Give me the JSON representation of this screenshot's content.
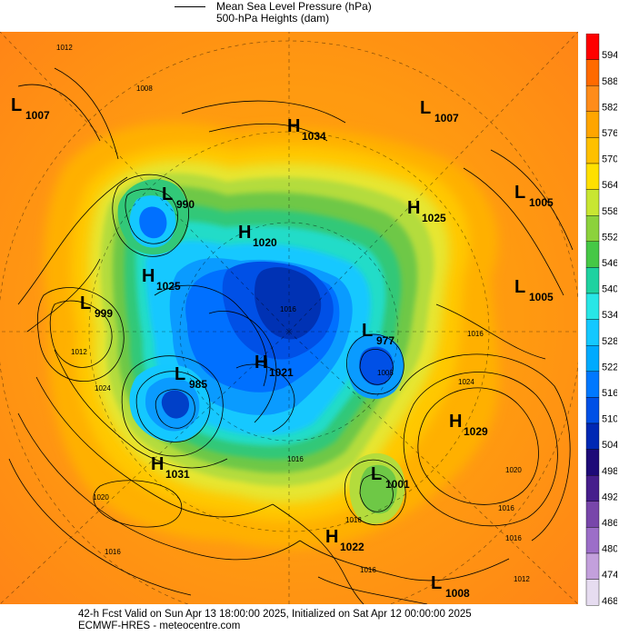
{
  "legend": {
    "line_label_1": "Mean Sea Level Pressure (hPa)",
    "line_label_2": "500-hPa Heights (dam)"
  },
  "colorbar": {
    "labels": [
      "594",
      "588",
      "582",
      "576",
      "570",
      "564",
      "558",
      "552",
      "546",
      "540",
      "534",
      "528",
      "522",
      "516",
      "510",
      "504",
      "498",
      "492",
      "486",
      "480",
      "474",
      "468"
    ],
    "colors": [
      "#ff0000",
      "#ff6a00",
      "#ff8c1a",
      "#ffa500",
      "#ffc000",
      "#ffe000",
      "#c8e632",
      "#8cd23c",
      "#46c846",
      "#1ed2a0",
      "#28e6e6",
      "#14c8ff",
      "#00aaff",
      "#0078ff",
      "#0050e6",
      "#0028b4",
      "#1e0a78",
      "#461e8c",
      "#7846aa",
      "#9c6ec8",
      "#c3a0dc",
      "#e6dcf0"
    ]
  },
  "systems": [
    {
      "type": "L",
      "value": "1007"
    },
    {
      "type": "H",
      "value": "1034"
    },
    {
      "type": "L",
      "value": "1007"
    },
    {
      "type": "L",
      "value": "990"
    },
    {
      "type": "L",
      "value": "1005"
    },
    {
      "type": "H",
      "value": "1025"
    },
    {
      "type": "H",
      "value": "1020"
    },
    {
      "type": "H",
      "value": "1025"
    },
    {
      "type": "L",
      "value": "999"
    },
    {
      "type": "L",
      "value": "1005"
    },
    {
      "type": "L",
      "value": "977"
    },
    {
      "type": "L",
      "value": "985"
    },
    {
      "type": "H",
      "value": "1021"
    },
    {
      "type": "H",
      "value": "1029"
    },
    {
      "type": "H",
      "value": "1031"
    },
    {
      "type": "L",
      "value": "1001"
    },
    {
      "type": "H",
      "value": "1022"
    },
    {
      "type": "L",
      "value": "1008"
    }
  ],
  "isobar_labels": [
    "1012",
    "1008",
    "1012",
    "1016",
    "1024",
    "1020",
    "1016",
    "1016",
    "1016",
    "1024",
    "1020",
    "1016",
    "1016",
    "1012",
    "1016",
    "1008",
    "1016"
  ],
  "footer": {
    "line1": "42-h Fcst Valid on Sun Apr 13 18:00:00 2025, Initialized on Sat Apr 12 00:00:00 2025",
    "line2": "ECMWF-HRES  - meteocentre.com"
  }
}
